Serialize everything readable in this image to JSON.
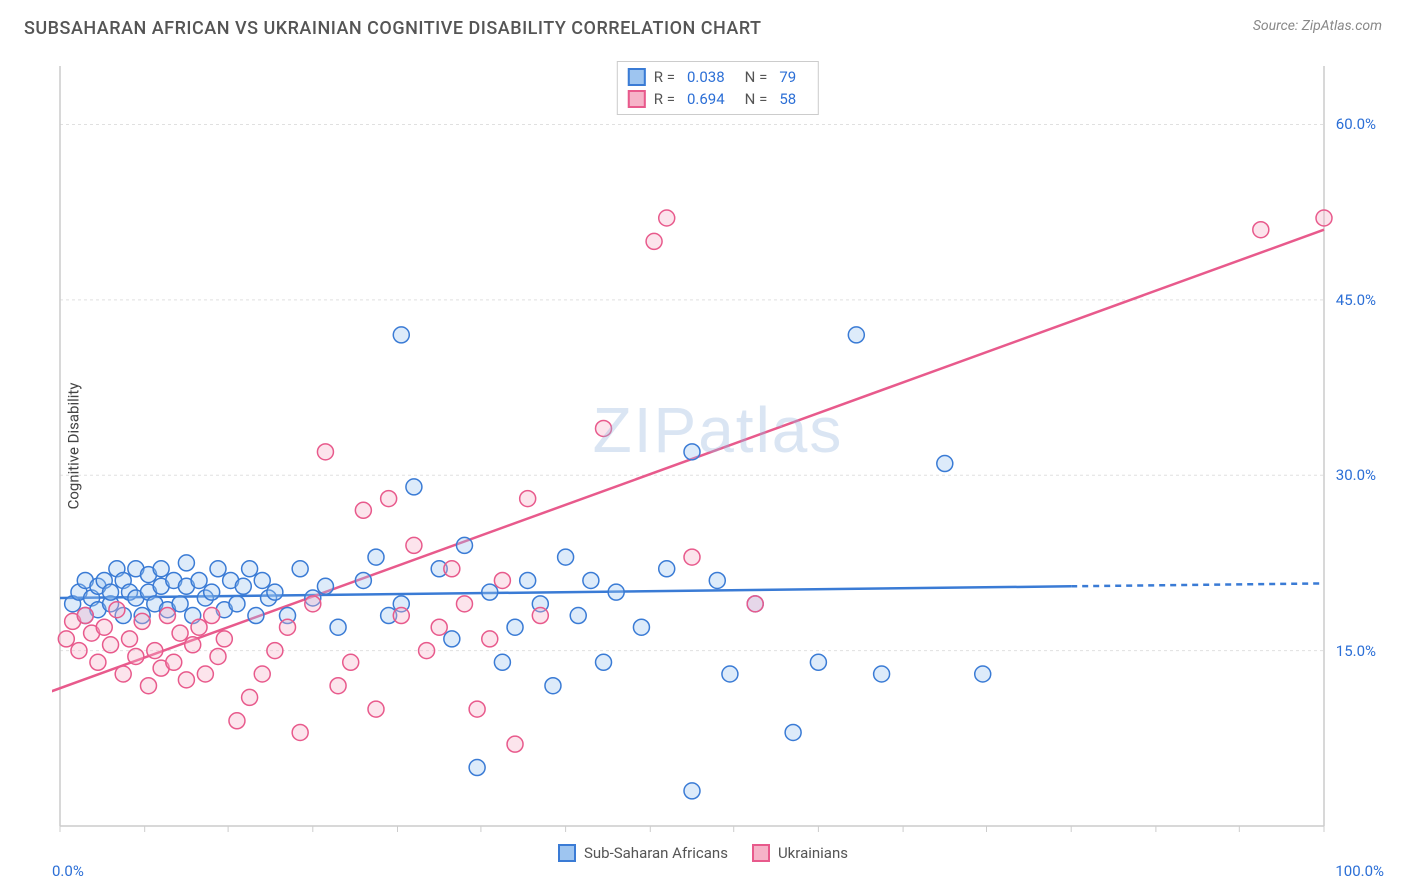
{
  "title": "SUBSAHARAN AFRICAN VS UKRAINIAN COGNITIVE DISABILITY CORRELATION CHART",
  "source": "Source: ZipAtlas.com",
  "ylabel": "Cognitive Disability",
  "watermark": "ZIPatlas",
  "chart": {
    "type": "scatter",
    "xlim": [
      0,
      100
    ],
    "ylim": [
      0,
      65
    ],
    "xtick_labels": [
      "0.0%",
      "100.0%"
    ],
    "ytick_positions": [
      15,
      30,
      45,
      60
    ],
    "ytick_labels": [
      "15.0%",
      "30.0%",
      "45.0%",
      "60.0%"
    ],
    "xtick_minor": [
      0,
      6.7,
      13.3,
      20,
      26.7,
      33.3,
      40,
      46.7,
      53.3,
      60,
      66.7,
      73.3,
      80,
      86.7,
      93.3,
      100
    ],
    "background_color": "#ffffff",
    "grid_color": "#e0e0e0",
    "axis_color": "#cccccc",
    "marker_radius": 8,
    "marker_stroke_width": 1.5,
    "marker_fill_opacity": 0.35,
    "trend_line_width": 2.5,
    "series": [
      {
        "name": "Sub-Saharan Africans",
        "color_stroke": "#3a7bd5",
        "color_fill": "#9ec5f0",
        "r": 0.038,
        "n": 79,
        "trend": {
          "from": [
            0,
            19.5
          ],
          "to": [
            80,
            20.5
          ],
          "extrapolate_to": 100,
          "dash_after_x": 80
        },
        "points": [
          [
            1,
            19
          ],
          [
            1.5,
            20
          ],
          [
            2,
            18
          ],
          [
            2,
            21
          ],
          [
            2.5,
            19.5
          ],
          [
            3,
            20.5
          ],
          [
            3,
            18.5
          ],
          [
            3.5,
            21
          ],
          [
            4,
            19
          ],
          [
            4,
            20
          ],
          [
            4.5,
            22
          ],
          [
            5,
            18
          ],
          [
            5,
            21
          ],
          [
            5.5,
            20
          ],
          [
            6,
            19.5
          ],
          [
            6,
            22
          ],
          [
            6.5,
            18
          ],
          [
            7,
            20
          ],
          [
            7,
            21.5
          ],
          [
            7.5,
            19
          ],
          [
            8,
            22
          ],
          [
            8,
            20.5
          ],
          [
            8.5,
            18.5
          ],
          [
            9,
            21
          ],
          [
            9.5,
            19
          ],
          [
            10,
            20.5
          ],
          [
            10,
            22.5
          ],
          [
            10.5,
            18
          ],
          [
            11,
            21
          ],
          [
            11.5,
            19.5
          ],
          [
            12,
            20
          ],
          [
            12.5,
            22
          ],
          [
            13,
            18.5
          ],
          [
            13.5,
            21
          ],
          [
            14,
            19
          ],
          [
            14.5,
            20.5
          ],
          [
            15,
            22
          ],
          [
            15.5,
            18
          ],
          [
            16,
            21
          ],
          [
            16.5,
            19.5
          ],
          [
            17,
            20
          ],
          [
            18,
            18
          ],
          [
            19,
            22
          ],
          [
            20,
            19.5
          ],
          [
            21,
            20.5
          ],
          [
            22,
            17
          ],
          [
            24,
            21
          ],
          [
            25,
            23
          ],
          [
            26,
            18
          ],
          [
            27,
            19
          ],
          [
            27,
            42
          ],
          [
            28,
            29
          ],
          [
            30,
            22
          ],
          [
            31,
            16
          ],
          [
            32,
            24
          ],
          [
            33,
            5
          ],
          [
            34,
            20
          ],
          [
            35,
            14
          ],
          [
            36,
            17
          ],
          [
            37,
            21
          ],
          [
            38,
            19
          ],
          [
            39,
            12
          ],
          [
            40,
            23
          ],
          [
            41,
            18
          ],
          [
            42,
            21
          ],
          [
            43,
            14
          ],
          [
            44,
            20
          ],
          [
            46,
            17
          ],
          [
            48,
            22
          ],
          [
            50,
            3
          ],
          [
            50,
            32
          ],
          [
            52,
            21
          ],
          [
            53,
            13
          ],
          [
            55,
            19
          ],
          [
            58,
            8
          ],
          [
            60,
            14
          ],
          [
            63,
            42
          ],
          [
            65,
            13
          ],
          [
            70,
            31
          ],
          [
            73,
            13
          ]
        ]
      },
      {
        "name": "Ukrainians",
        "color_stroke": "#e85a8c",
        "color_fill": "#f6b3c8",
        "r": 0.694,
        "n": 58,
        "trend": {
          "from": [
            -2,
            11
          ],
          "to": [
            100,
            51
          ],
          "dash_after_x": null
        },
        "points": [
          [
            0.5,
            16
          ],
          [
            1,
            17.5
          ],
          [
            1.5,
            15
          ],
          [
            2,
            18
          ],
          [
            2.5,
            16.5
          ],
          [
            3,
            14
          ],
          [
            3.5,
            17
          ],
          [
            4,
            15.5
          ],
          [
            4.5,
            18.5
          ],
          [
            5,
            13
          ],
          [
            5.5,
            16
          ],
          [
            6,
            14.5
          ],
          [
            6.5,
            17.5
          ],
          [
            7,
            12
          ],
          [
            7.5,
            15
          ],
          [
            8,
            13.5
          ],
          [
            8.5,
            18
          ],
          [
            9,
            14
          ],
          [
            9.5,
            16.5
          ],
          [
            10,
            12.5
          ],
          [
            10.5,
            15.5
          ],
          [
            11,
            17
          ],
          [
            11.5,
            13
          ],
          [
            12,
            18
          ],
          [
            12.5,
            14.5
          ],
          [
            13,
            16
          ],
          [
            14,
            9
          ],
          [
            15,
            11
          ],
          [
            16,
            13
          ],
          [
            17,
            15
          ],
          [
            18,
            17
          ],
          [
            19,
            8
          ],
          [
            20,
            19
          ],
          [
            21,
            32
          ],
          [
            22,
            12
          ],
          [
            23,
            14
          ],
          [
            24,
            27
          ],
          [
            25,
            10
          ],
          [
            26,
            28
          ],
          [
            27,
            18
          ],
          [
            28,
            24
          ],
          [
            29,
            15
          ],
          [
            30,
            17
          ],
          [
            31,
            22
          ],
          [
            32,
            19
          ],
          [
            33,
            10
          ],
          [
            34,
            16
          ],
          [
            35,
            21
          ],
          [
            36,
            7
          ],
          [
            37,
            28
          ],
          [
            38,
            18
          ],
          [
            43,
            34
          ],
          [
            47,
            50
          ],
          [
            48,
            52
          ],
          [
            50,
            23
          ],
          [
            55,
            19
          ],
          [
            95,
            51
          ],
          [
            100,
            52
          ]
        ]
      }
    ]
  },
  "legend_top_labels": {
    "r": "R =",
    "n": "N ="
  },
  "bottom_legend": [
    "Sub-Saharan Africans",
    "Ukrainians"
  ]
}
